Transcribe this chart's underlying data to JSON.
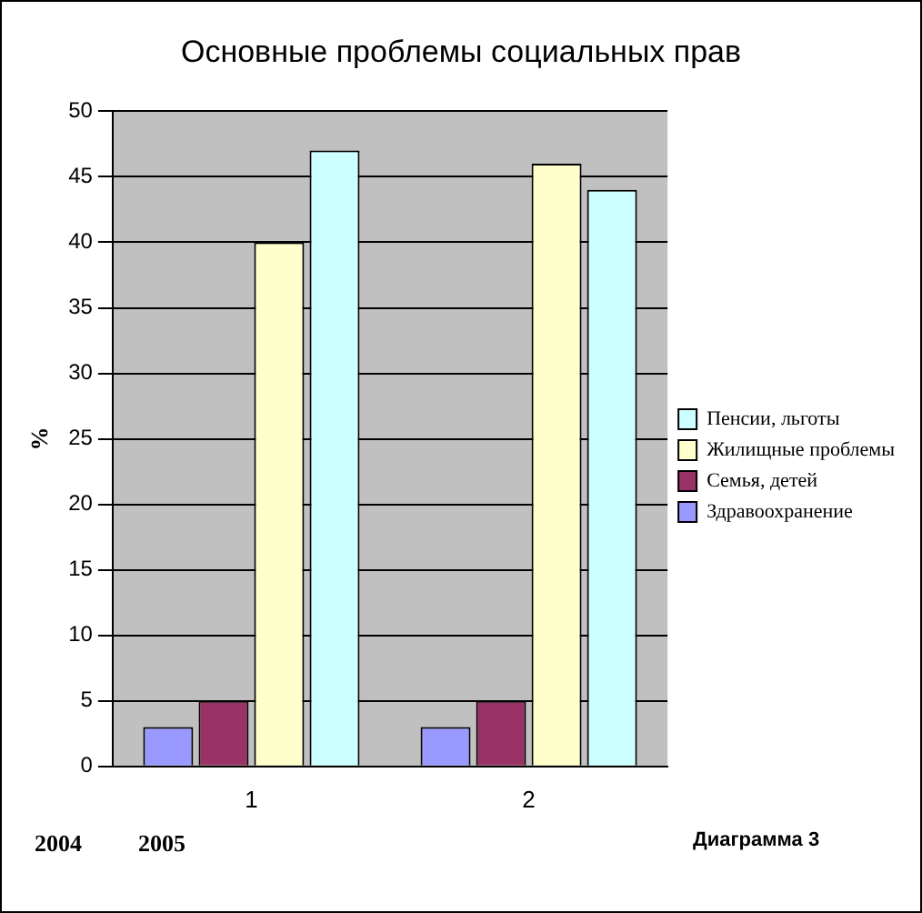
{
  "chart_data": {
    "type": "bar",
    "title": "Основные проблемы социальных прав",
    "ylabel": "%",
    "categories": [
      "1",
      "2"
    ],
    "series": [
      {
        "name": "Здравоохранение",
        "color": "#9999ff",
        "values": [
          3,
          3
        ]
      },
      {
        "name": "Семья, детей",
        "color": "#993366",
        "values": [
          5,
          5
        ]
      },
      {
        "name": "Жилищные проблемы",
        "color": "#ffffcc",
        "values": [
          40,
          46
        ]
      },
      {
        "name": "Пенсии, льготы",
        "color": "#ccffff",
        "values": [
          47,
          44
        ]
      }
    ],
    "ylim": [
      0,
      50
    ],
    "yticks": [
      0,
      5,
      10,
      15,
      20,
      25,
      30,
      35,
      40,
      45,
      50
    ],
    "grid": "y",
    "legend": "right",
    "annotations": [
      "2004",
      "2005",
      "Диаграмма 3"
    ]
  }
}
